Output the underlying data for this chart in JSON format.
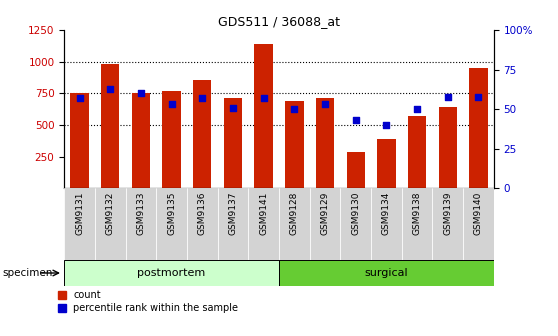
{
  "title": "GDS511 / 36088_at",
  "samples": [
    "GSM9131",
    "GSM9132",
    "GSM9133",
    "GSM9135",
    "GSM9136",
    "GSM9137",
    "GSM9141",
    "GSM9128",
    "GSM9129",
    "GSM9130",
    "GSM9134",
    "GSM9138",
    "GSM9139",
    "GSM9140"
  ],
  "counts": [
    750,
    985,
    750,
    770,
    860,
    710,
    1140,
    690,
    710,
    285,
    390,
    570,
    645,
    950
  ],
  "percentiles": [
    57,
    63,
    60,
    53,
    57,
    51,
    57,
    50,
    53,
    43,
    40,
    50,
    58,
    58
  ],
  "postmortem_count": 7,
  "surgical_count": 7,
  "bar_color": "#cc2200",
  "dot_color": "#0000cc",
  "ylim_left": [
    0,
    1250
  ],
  "ylim_right": [
    0,
    100
  ],
  "yticks_left": [
    250,
    500,
    750,
    1000,
    1250
  ],
  "yticks_right": [
    0,
    25,
    50,
    75,
    100
  ],
  "grid_values": [
    500,
    750,
    1000
  ],
  "postmortem_color": "#ccffcc",
  "surgical_color": "#66cc33",
  "tick_bg_color": "#d3d3d3",
  "tick_label_color_left": "#cc0000",
  "tick_label_color_right": "#0000cc",
  "legend_count_label": "count",
  "legend_pct_label": "percentile rank within the sample",
  "specimen_label": "specimen",
  "postmortem_label": "postmortem",
  "surgical_label": "surgical"
}
